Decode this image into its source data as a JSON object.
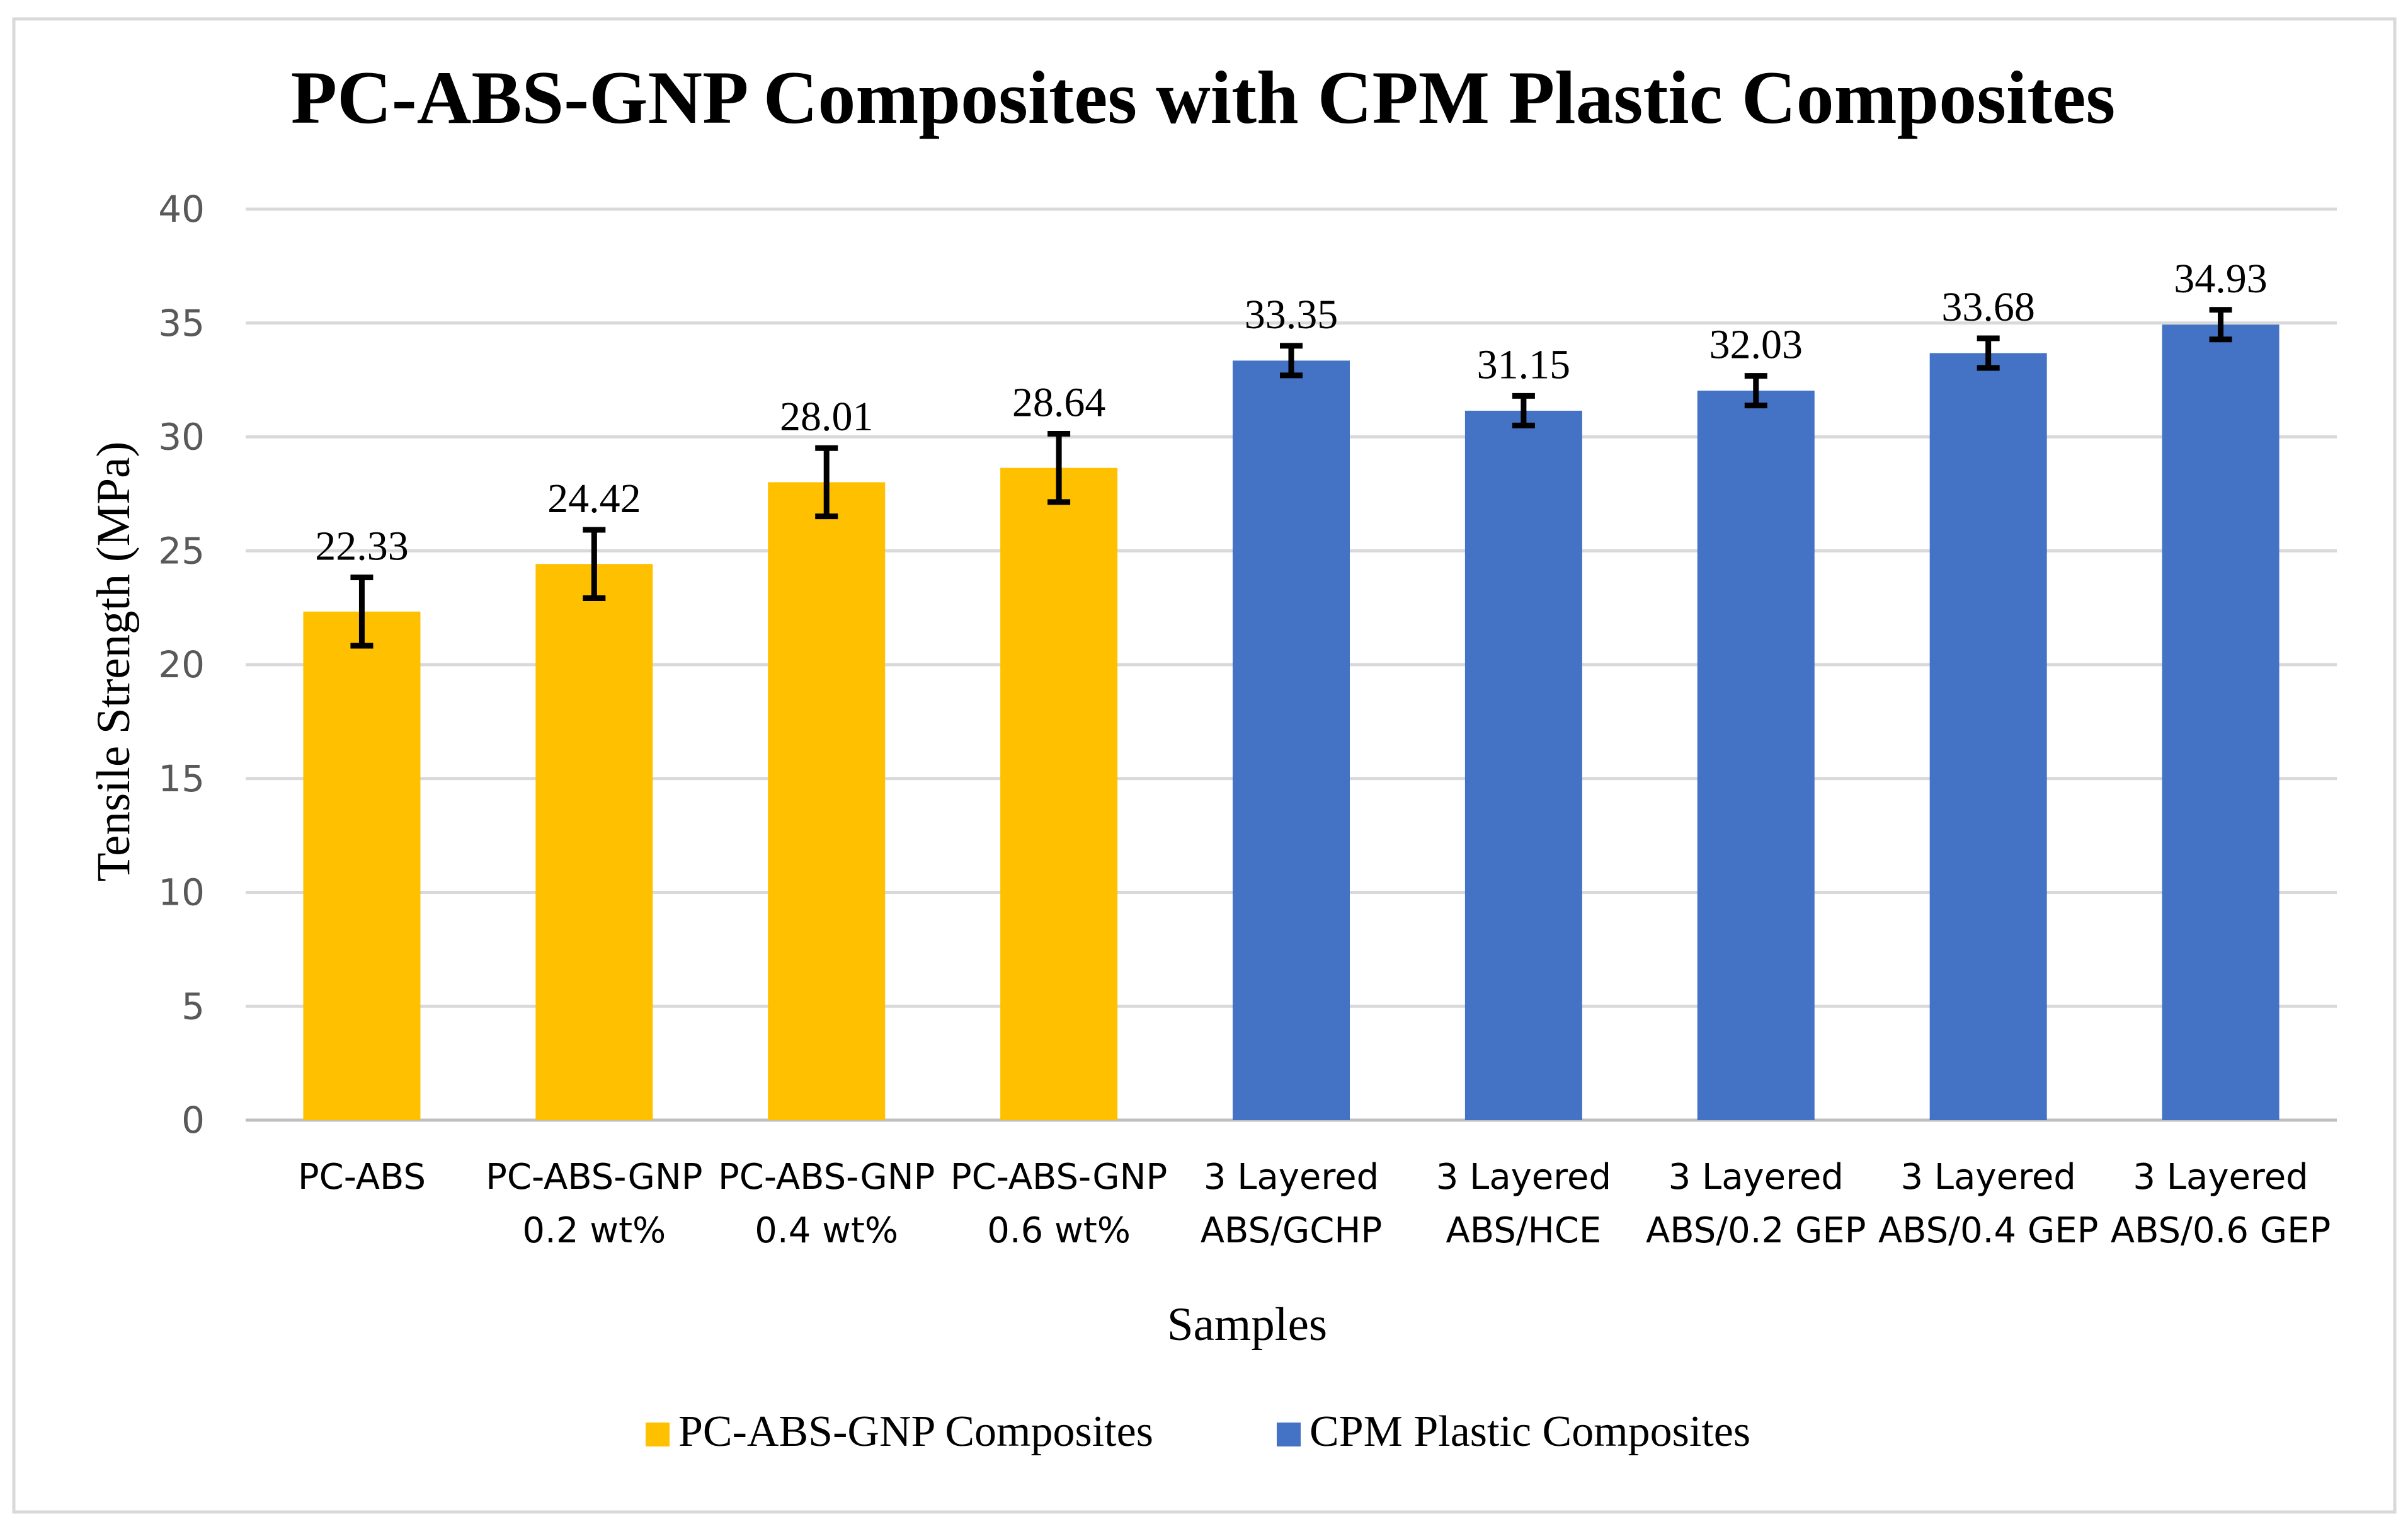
{
  "chart_data": {
    "type": "bar",
    "title": "PC-ABS-GNP Composites with CPM Plastic Composites",
    "xlabel": "Samples",
    "ylabel": "Tensile Strength (MPa)",
    "ylim": [
      0,
      40
    ],
    "yticks": [
      0,
      5,
      10,
      15,
      20,
      25,
      30,
      35,
      40
    ],
    "grid": true,
    "legend_position": "bottom-center",
    "categories": [
      [
        "PC-ABS"
      ],
      [
        "PC-ABS-GNP",
        "0.2 wt%"
      ],
      [
        "PC-ABS-GNP",
        "0.4 wt%"
      ],
      [
        "PC-ABS-GNP",
        "0.6 wt%"
      ],
      [
        "3 Layered",
        "ABS/GCHP"
      ],
      [
        "3 Layered",
        "ABS/HCE"
      ],
      [
        "3 Layered",
        "ABS/0.2 GEP"
      ],
      [
        "3 Layered",
        "ABS/0.4 GEP"
      ],
      [
        "3 Layered",
        "ABS/0.6 GEP"
      ]
    ],
    "values": [
      22.33,
      24.42,
      28.01,
      28.64,
      33.35,
      31.15,
      32.03,
      33.68,
      34.93
    ],
    "value_labels": [
      "22.33",
      "24.42",
      "28.01",
      "28.64",
      "33.35",
      "31.15",
      "32.03",
      "33.68",
      "34.93"
    ],
    "errors": [
      1.5,
      1.5,
      1.5,
      1.5,
      0.65,
      0.65,
      0.65,
      0.65,
      0.65
    ],
    "bar_series": [
      0,
      0,
      0,
      0,
      1,
      1,
      1,
      1,
      1
    ],
    "series": [
      {
        "name": "PC-ABS-GNP Composites",
        "color": "#FFC000"
      },
      {
        "name": "CPM Plastic Composites",
        "color": "#4472C4"
      }
    ],
    "colors": {
      "grid": "#D9D9D9",
      "axis": "#BFBFBF",
      "tick_text": "#595959",
      "error_bar": "#000000",
      "frame": "#D9D9D9",
      "text": "#000000"
    }
  }
}
